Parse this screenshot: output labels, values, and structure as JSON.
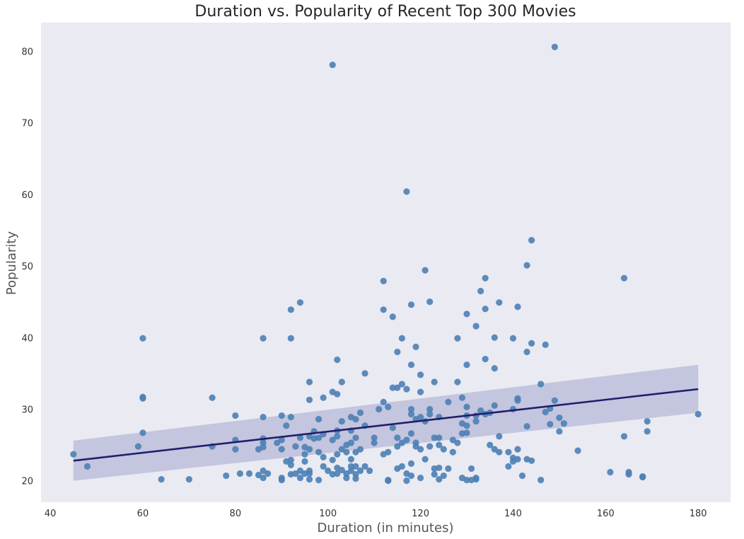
{
  "chart_data": {
    "type": "scatter",
    "title": "Duration vs. Popularity of Recent Top 300 Movies",
    "xlabel": "Duration (in minutes)",
    "ylabel": "Popularity",
    "xlim": [
      38,
      187
    ],
    "ylim": [
      17,
      84
    ],
    "xticks": [
      "40",
      "60",
      "80",
      "100",
      "120",
      "140",
      "160",
      "180"
    ],
    "yticks": [
      "20",
      "30",
      "40",
      "50",
      "60",
      "70",
      "80"
    ],
    "grid": false,
    "background": "#eaeaf2",
    "point_color": "#4c7fb5",
    "line_color": "#1f1f6e",
    "band_color": "#b3b5d6",
    "regression": {
      "x": [
        45,
        180
      ],
      "y": [
        22.8,
        32.8
      ],
      "ci_low": [
        20.0,
        29.5
      ],
      "ci_high": [
        25.6,
        36.2
      ]
    },
    "points": [
      [
        45,
        23.7
      ],
      [
        48,
        22.0
      ],
      [
        59,
        24.8
      ],
      [
        60,
        39.9
      ],
      [
        60,
        31.7
      ],
      [
        60,
        31.5
      ],
      [
        60,
        26.7
      ],
      [
        64,
        20.2
      ],
      [
        70,
        20.2
      ],
      [
        75,
        31.6
      ],
      [
        75,
        24.8
      ],
      [
        78,
        20.7
      ],
      [
        80,
        29.1
      ],
      [
        80,
        25.7
      ],
      [
        80,
        24.4
      ],
      [
        81,
        21.0
      ],
      [
        83,
        21.0
      ],
      [
        85,
        20.8
      ],
      [
        85,
        24.4
      ],
      [
        86,
        39.9
      ],
      [
        86,
        28.9
      ],
      [
        86,
        25.9
      ],
      [
        86,
        25.3
      ],
      [
        86,
        24.7
      ],
      [
        86,
        21.4
      ],
      [
        86,
        20.4
      ],
      [
        87,
        21.0
      ],
      [
        89,
        25.3
      ],
      [
        90,
        29.1
      ],
      [
        90,
        25.7
      ],
      [
        90,
        24.4
      ],
      [
        90,
        20.4
      ],
      [
        90,
        20.1
      ],
      [
        91,
        27.7
      ],
      [
        91,
        22.7
      ],
      [
        92,
        43.9
      ],
      [
        92,
        39.9
      ],
      [
        92,
        28.9
      ],
      [
        92,
        22.9
      ],
      [
        92,
        22.2
      ],
      [
        92,
        20.9
      ],
      [
        93,
        24.8
      ],
      [
        93,
        21.0
      ],
      [
        94,
        44.9
      ],
      [
        94,
        26.0
      ],
      [
        94,
        21.4
      ],
      [
        94,
        20.4
      ],
      [
        95,
        24.7
      ],
      [
        95,
        23.7
      ],
      [
        95,
        22.7
      ],
      [
        95,
        21.0
      ],
      [
        96,
        33.8
      ],
      [
        96,
        31.3
      ],
      [
        96,
        26.2
      ],
      [
        96,
        24.4
      ],
      [
        96,
        21.4
      ],
      [
        96,
        21.0
      ],
      [
        96,
        20.2
      ],
      [
        97,
        26.9
      ],
      [
        97,
        25.9
      ],
      [
        98,
        28.6
      ],
      [
        98,
        26.0
      ],
      [
        98,
        24.0
      ],
      [
        98,
        20.1
      ],
      [
        99,
        31.6
      ],
      [
        99,
        26.5
      ],
      [
        99,
        23.3
      ],
      [
        99,
        22.0
      ],
      [
        100,
        21.4
      ],
      [
        101,
        32.4
      ],
      [
        101,
        25.7
      ],
      [
        101,
        22.9
      ],
      [
        101,
        78.1
      ],
      [
        101,
        20.9
      ],
      [
        102,
        36.9
      ],
      [
        102,
        32.1
      ],
      [
        102,
        27.0
      ],
      [
        102,
        26.2
      ],
      [
        102,
        23.7
      ],
      [
        102,
        21.8
      ],
      [
        102,
        21.0
      ],
      [
        103,
        28.3
      ],
      [
        103,
        24.4
      ],
      [
        103,
        21.5
      ],
      [
        103,
        33.8
      ],
      [
        104,
        25.0
      ],
      [
        104,
        24.0
      ],
      [
        104,
        20.4
      ],
      [
        104,
        21.0
      ],
      [
        105,
        28.9
      ],
      [
        105,
        27.0
      ],
      [
        105,
        25.3
      ],
      [
        105,
        23.0
      ],
      [
        105,
        22.0
      ],
      [
        105,
        21.4
      ],
      [
        106,
        28.6
      ],
      [
        106,
        26.0
      ],
      [
        106,
        24.0
      ],
      [
        106,
        22.0
      ],
      [
        106,
        20.9
      ],
      [
        106,
        20.3
      ],
      [
        107,
        29.5
      ],
      [
        107,
        24.4
      ],
      [
        107,
        21.4
      ],
      [
        108,
        35.0
      ],
      [
        108,
        27.7
      ],
      [
        108,
        22.0
      ],
      [
        109,
        21.4
      ],
      [
        110,
        26.0
      ],
      [
        110,
        25.3
      ],
      [
        111,
        30.0
      ],
      [
        112,
        47.9
      ],
      [
        112,
        43.9
      ],
      [
        112,
        31.0
      ],
      [
        112,
        23.7
      ],
      [
        113,
        30.3
      ],
      [
        113,
        24.0
      ],
      [
        113,
        20.1
      ],
      [
        113,
        20.0
      ],
      [
        114,
        42.9
      ],
      [
        114,
        33.0
      ],
      [
        114,
        27.4
      ],
      [
        115,
        38.0
      ],
      [
        115,
        33.0
      ],
      [
        115,
        26.0
      ],
      [
        115,
        24.8
      ],
      [
        115,
        21.7
      ],
      [
        116,
        39.9
      ],
      [
        116,
        33.5
      ],
      [
        116,
        25.3
      ],
      [
        116,
        22.0
      ],
      [
        117,
        60.4
      ],
      [
        117,
        32.8
      ],
      [
        117,
        25.7
      ],
      [
        117,
        21.0
      ],
      [
        117,
        20.0
      ],
      [
        118,
        44.6
      ],
      [
        118,
        36.2
      ],
      [
        118,
        30.0
      ],
      [
        118,
        29.3
      ],
      [
        118,
        26.6
      ],
      [
        118,
        22.4
      ],
      [
        118,
        20.7
      ],
      [
        119,
        38.7
      ],
      [
        119,
        28.6
      ],
      [
        119,
        25.3
      ],
      [
        119,
        24.8
      ],
      [
        120,
        34.8
      ],
      [
        120,
        32.4
      ],
      [
        120,
        28.9
      ],
      [
        120,
        24.4
      ],
      [
        120,
        20.4
      ],
      [
        121,
        49.4
      ],
      [
        121,
        28.3
      ],
      [
        121,
        23.0
      ],
      [
        122,
        45.0
      ],
      [
        122,
        30.0
      ],
      [
        122,
        29.3
      ],
      [
        122,
        24.8
      ],
      [
        123,
        33.8
      ],
      [
        123,
        26.0
      ],
      [
        123,
        21.7
      ],
      [
        123,
        20.9
      ],
      [
        124,
        28.9
      ],
      [
        124,
        26.0
      ],
      [
        124,
        25.0
      ],
      [
        124,
        21.8
      ],
      [
        124,
        20.2
      ],
      [
        125,
        24.4
      ],
      [
        125,
        20.7
      ],
      [
        126,
        31.0
      ],
      [
        126,
        21.7
      ],
      [
        127,
        25.7
      ],
      [
        127,
        24.0
      ],
      [
        128,
        39.9
      ],
      [
        128,
        33.8
      ],
      [
        128,
        25.3
      ],
      [
        129,
        31.6
      ],
      [
        129,
        28.0
      ],
      [
        129,
        26.6
      ],
      [
        129,
        20.4
      ],
      [
        130,
        43.3
      ],
      [
        130,
        36.2
      ],
      [
        130,
        30.3
      ],
      [
        130,
        29.1
      ],
      [
        130,
        27.7
      ],
      [
        130,
        26.7
      ],
      [
        130,
        20.1
      ],
      [
        131,
        21.7
      ],
      [
        131,
        20.1
      ],
      [
        132,
        41.6
      ],
      [
        132,
        29.1
      ],
      [
        132,
        28.3
      ],
      [
        132,
        20.4
      ],
      [
        132,
        20.2
      ],
      [
        133,
        46.5
      ],
      [
        133,
        29.8
      ],
      [
        134,
        48.3
      ],
      [
        134,
        44.0
      ],
      [
        134,
        37.0
      ],
      [
        134,
        29.3
      ],
      [
        135,
        29.5
      ],
      [
        135,
        25.0
      ],
      [
        136,
        40.0
      ],
      [
        136,
        35.7
      ],
      [
        136,
        30.5
      ],
      [
        136,
        24.4
      ],
      [
        137,
        44.9
      ],
      [
        137,
        26.2
      ],
      [
        137,
        24.0
      ],
      [
        139,
        24.0
      ],
      [
        139,
        22.0
      ],
      [
        140,
        39.9
      ],
      [
        140,
        30.0
      ],
      [
        140,
        23.2
      ],
      [
        140,
        22.7
      ],
      [
        141,
        44.3
      ],
      [
        141,
        31.5
      ],
      [
        141,
        31.2
      ],
      [
        141,
        24.4
      ],
      [
        141,
        23.0
      ],
      [
        142,
        20.7
      ],
      [
        143,
        50.1
      ],
      [
        143,
        38.0
      ],
      [
        143,
        27.6
      ],
      [
        143,
        23.0
      ],
      [
        144,
        53.6
      ],
      [
        144,
        39.2
      ],
      [
        144,
        22.8
      ],
      [
        146,
        33.5
      ],
      [
        146,
        20.1
      ],
      [
        147,
        39.0
      ],
      [
        147,
        29.6
      ],
      [
        148,
        30.1
      ],
      [
        148,
        27.9
      ],
      [
        149,
        80.6
      ],
      [
        149,
        31.2
      ],
      [
        150,
        28.8
      ],
      [
        150,
        26.9
      ],
      [
        151,
        28.0
      ],
      [
        154,
        24.2
      ],
      [
        161,
        21.2
      ],
      [
        164,
        48.3
      ],
      [
        164,
        26.2
      ],
      [
        165,
        21.2
      ],
      [
        165,
        20.9
      ],
      [
        168,
        20.6
      ],
      [
        168,
        20.5
      ],
      [
        169,
        28.3
      ],
      [
        169,
        26.9
      ],
      [
        180,
        29.3
      ]
    ]
  }
}
